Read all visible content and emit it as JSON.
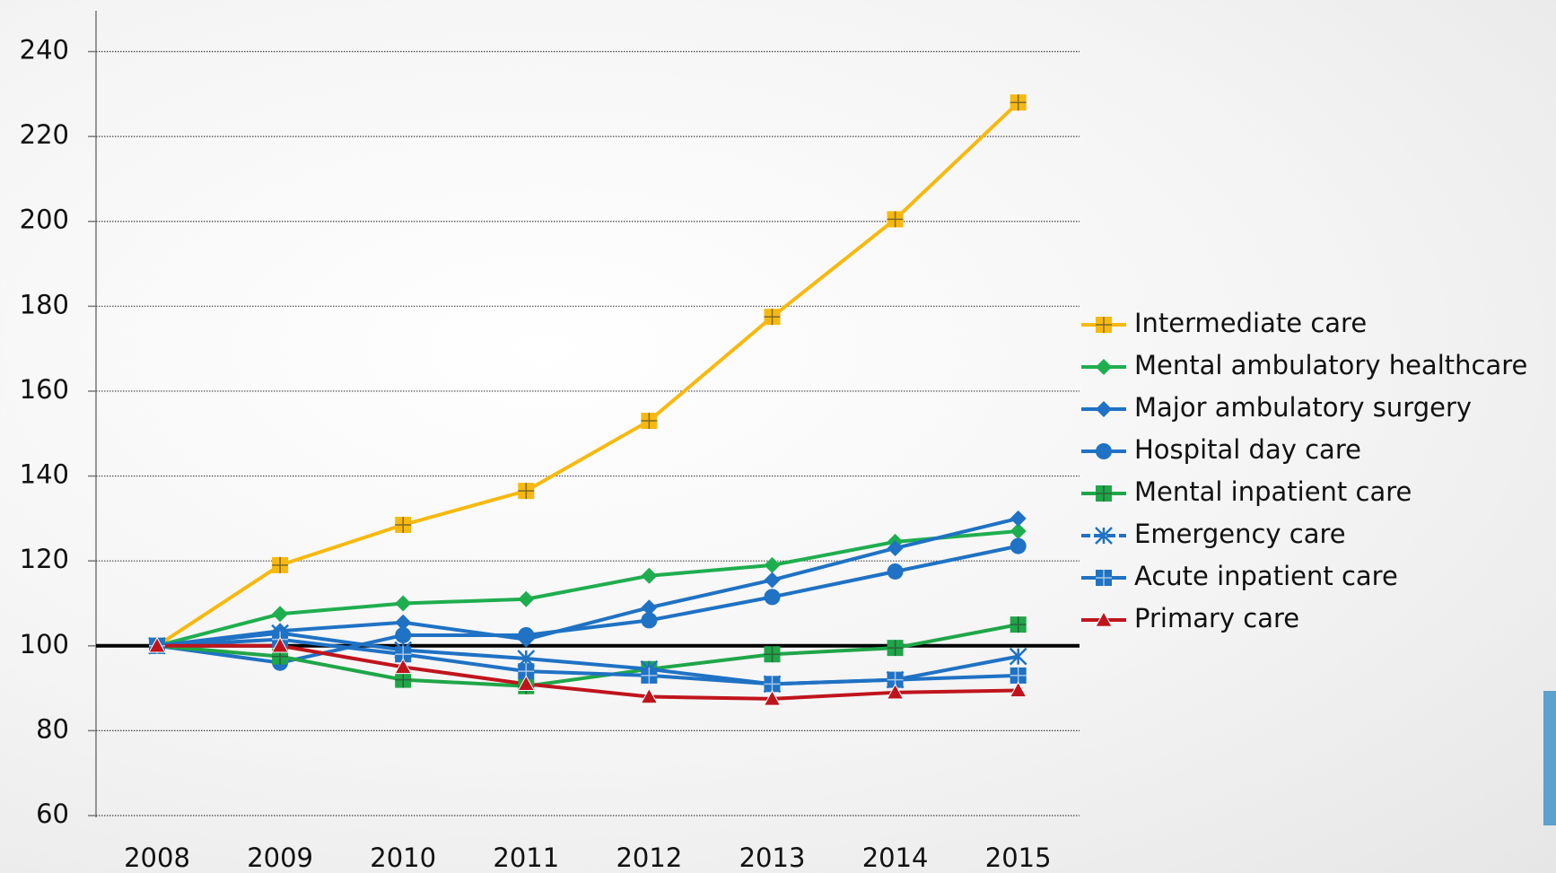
{
  "chart_data": {
    "type": "line",
    "categories": [
      "2008",
      "2009",
      "2010",
      "2011",
      "2012",
      "2013",
      "2014",
      "2015"
    ],
    "ylim": [
      60,
      240
    ],
    "yticks": [
      60,
      80,
      100,
      120,
      140,
      160,
      180,
      200,
      220,
      240
    ],
    "grid": true,
    "baseline": 100,
    "legend": "right",
    "series": [
      {
        "name": "Intermediate care",
        "color": "#f7b90f",
        "marker": "square-plus",
        "values": [
          100,
          119,
          128.5,
          136.5,
          153,
          177.5,
          200.5,
          228
        ]
      },
      {
        "name": "Mental ambulatory healthcare",
        "color": "#1fae4f",
        "marker": "diamond",
        "values": [
          100,
          107.5,
          110,
          111,
          116.5,
          119,
          124.5,
          127
        ]
      },
      {
        "name": "Major ambulatory surgery",
        "color": "#1f72c4",
        "marker": "diamond",
        "values": [
          100,
          103.5,
          105.5,
          101.5,
          109,
          115.5,
          123,
          130
        ]
      },
      {
        "name": "Hospital day care",
        "color": "#1f72c4",
        "marker": "circle",
        "values": [
          100,
          96,
          102.5,
          102.5,
          106,
          111.5,
          117.5,
          123.5
        ]
      },
      {
        "name": "Mental inpatient care",
        "color": "#1fa648",
        "marker": "square-plus",
        "values": [
          100,
          97.5,
          92,
          90.5,
          94.5,
          98,
          99.5,
          105
        ]
      },
      {
        "name": "Emergency care",
        "color": "#1f72c4",
        "marker": "asterisk",
        "dashed": true,
        "values": [
          100,
          103,
          99,
          97,
          94.5,
          91,
          92,
          97.5
        ]
      },
      {
        "name": "Acute inpatient care",
        "color": "#1f72c4",
        "marker": "square-plus",
        "values": [
          100,
          101.5,
          98,
          94,
          93,
          91,
          92,
          93
        ]
      },
      {
        "name": "Primary care",
        "color": "#c0141c",
        "marker": "triangle",
        "values": [
          100,
          100,
          95,
          91,
          88,
          87.5,
          89,
          89.5
        ]
      }
    ]
  }
}
